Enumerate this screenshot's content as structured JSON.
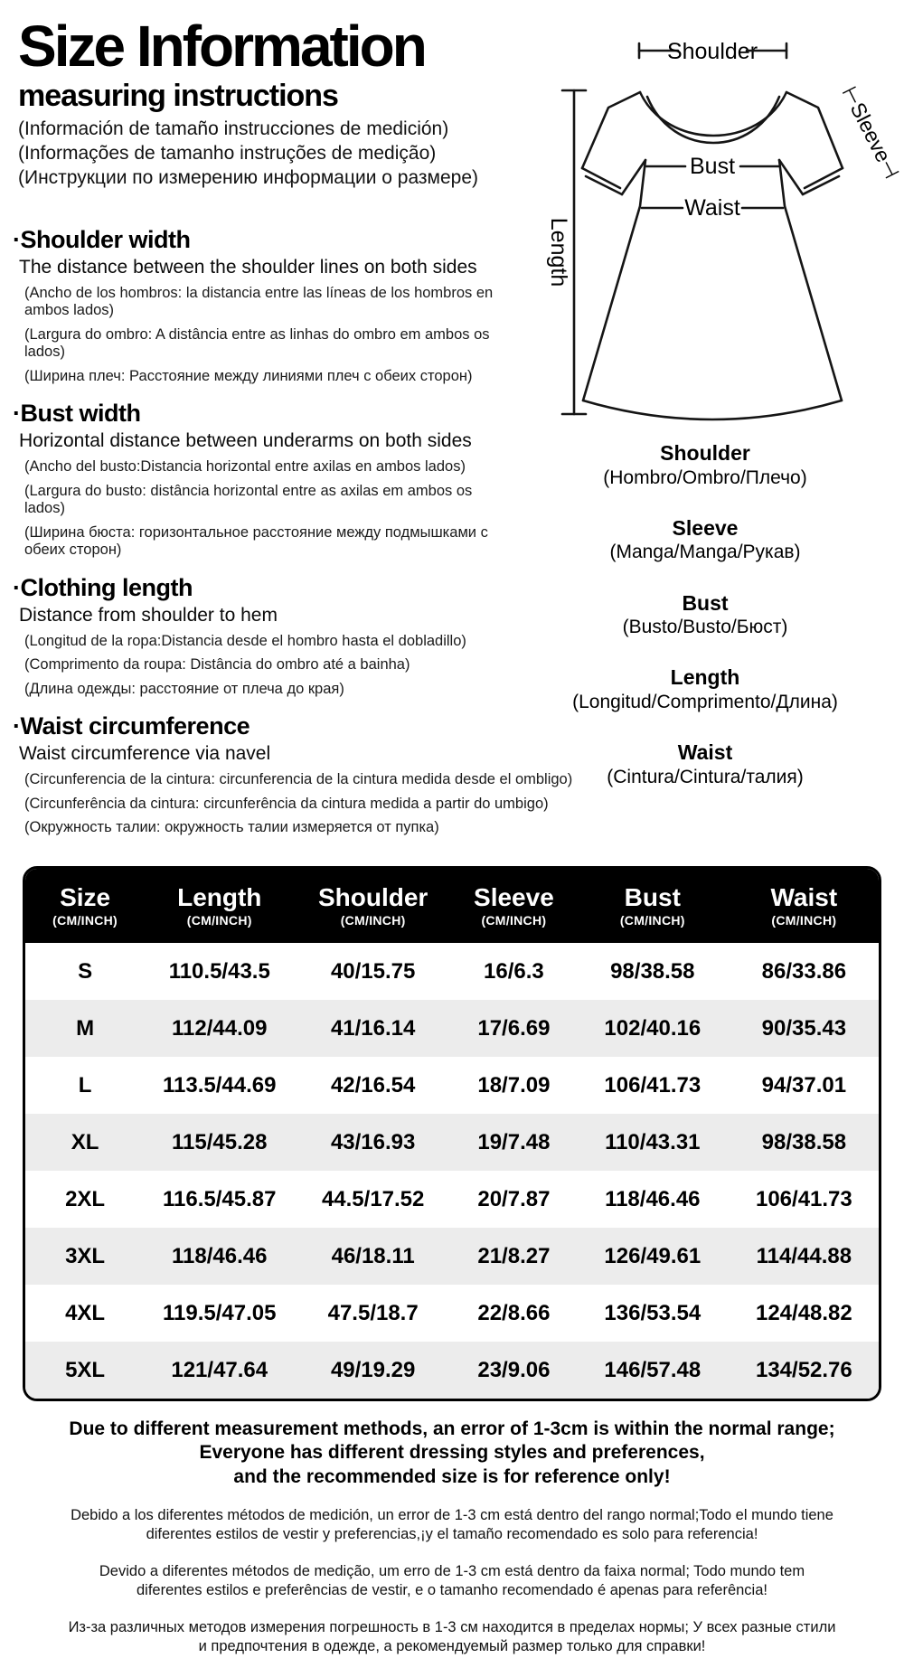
{
  "header": {
    "title": "Size Information",
    "subtitle": "measuring instructions",
    "translations": [
      "(Información de tamaño instrucciones de medición)",
      "(Informações de tamanho instruções de medição)",
      "(Инструкции по измерению информации о размере)"
    ]
  },
  "sections": [
    {
      "title": "·Shoulder width",
      "desc": "The distance between the shoulder lines on both sides",
      "translations": [
        "(Ancho de los hombros: la distancia entre las líneas de los hombros en ambos lados)",
        "(Largura do ombro: A distância entre as linhas do ombro em ambos os lados)",
        "(Ширина плеч: Расстояние между линиями плеч с обеих сторон)"
      ]
    },
    {
      "title": "·Bust width",
      "desc": "Horizontal distance between underarms on both sides",
      "translations": [
        "(Ancho del busto:Distancia horizontal entre axilas en ambos lados)",
        "(Largura do busto: distância horizontal entre as axilas em ambos os lados)",
        "(Ширина бюста: горизонтальное расстояние между подмышками с обеих сторон)"
      ]
    },
    {
      "title": "·Clothing length",
      "desc": "Distance from shoulder to hem",
      "translations": [
        "(Longitud de la ropa:Distancia desde el hombro hasta el dobladillo)",
        "(Comprimento da roupa: Distância do ombro até a bainha)",
        "(Длина одежды: расстояние от плеча до края)"
      ]
    },
    {
      "title": "·Waist circumference",
      "desc": "Waist circumference via navel",
      "translations": [
        "(Circunferencia de la cintura: circunferencia de la cintura medida desde el ombligo)",
        "(Circunferência da cintura: circunferência da cintura medida a partir do umbigo)",
        "(Окружность талии: окружность талии измеряется от пупка)"
      ]
    }
  ],
  "diagram": {
    "shoulder_label": "Shoulder",
    "sleeve_label": "⊢Sleeve⊣",
    "bust_label": "Bust",
    "waist_label": "Waist",
    "length_label": "Length"
  },
  "legend": [
    {
      "en": "Shoulder",
      "trans": "(Hombro/Ombro/Плечо)"
    },
    {
      "en": "Sleeve",
      "trans": "(Manga/Manga/Рукав)"
    },
    {
      "en": "Bust",
      "trans": "(Busto/Busto/Бюст)"
    },
    {
      "en": "Length",
      "trans": "(Longitud/Comprimento/Длина)"
    },
    {
      "en": "Waist",
      "trans": "(Cintura/Cintura/талия)"
    }
  ],
  "table": {
    "unit_label": "(CM/INCH)",
    "columns": [
      "Size",
      "Length",
      "Shoulder",
      "Sleeve",
      "Bust",
      "Waist"
    ],
    "rows": [
      [
        "S",
        "110.5/43.5",
        "40/15.75",
        "16/6.3",
        "98/38.58",
        "86/33.86"
      ],
      [
        "M",
        "112/44.09",
        "41/16.14",
        "17/6.69",
        "102/40.16",
        "90/35.43"
      ],
      [
        "L",
        "113.5/44.69",
        "42/16.54",
        "18/7.09",
        "106/41.73",
        "94/37.01"
      ],
      [
        "XL",
        "115/45.28",
        "43/16.93",
        "19/7.48",
        "110/43.31",
        "98/38.58"
      ],
      [
        "2XL",
        "116.5/45.87",
        "44.5/17.52",
        "20/7.87",
        "118/46.46",
        "106/41.73"
      ],
      [
        "3XL",
        "118/46.46",
        "46/18.11",
        "21/8.27",
        "126/49.61",
        "114/44.88"
      ],
      [
        "4XL",
        "119.5/47.05",
        "47.5/18.7",
        "22/8.66",
        "136/53.54",
        "124/48.82"
      ],
      [
        "5XL",
        "121/47.64",
        "49/19.29",
        "23/9.06",
        "146/57.48",
        "134/52.76"
      ]
    ]
  },
  "notes": {
    "en": [
      "Due to different measurement methods, an error of 1-3cm is within the normal range;",
      "Everyone has different dressing styles and preferences,",
      "and the recommended size is for reference only!"
    ],
    "es": [
      "Debido a los diferentes métodos de medición, un error de 1-3 cm está dentro del rango normal;Todo el mundo tiene",
      "diferentes estilos de vestir y preferencias,¡y el tamaño recomendado es solo para referencia!"
    ],
    "pt": [
      "Devido a diferentes métodos de medição, um erro de 1-3 cm está dentro da faixa normal; Todo mundo tem",
      "diferentes estilos e preferências de vestir, e o tamanho recomendado é apenas para referência!"
    ],
    "ru": [
      "Из-за различных методов измерения погрешность в 1-3 см находится в пределах нормы; У всех разные стили",
      "и предпочтения в одежде, а рекомендуемый размер только для справки!"
    ]
  },
  "colors": {
    "table_header_bg": "#000000",
    "row_alt_bg": "#ececec",
    "text": "#000000"
  }
}
